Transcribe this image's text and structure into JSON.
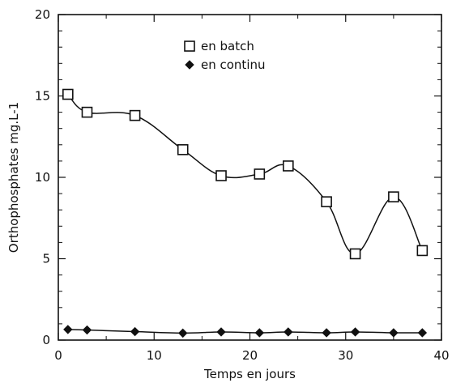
{
  "chart_data": {
    "type": "line",
    "title": "",
    "xlabel": "Temps en jours",
    "ylabel": "Orthophosphates mg.L-1",
    "xlim": [
      0,
      40
    ],
    "ylim": [
      0,
      20
    ],
    "xticks": [
      0,
      10,
      20,
      30,
      40
    ],
    "yticks": [
      0,
      5,
      10,
      15,
      20
    ],
    "grid": false,
    "legend_position": "top-center",
    "series": [
      {
        "name": "en batch",
        "marker": "open-square",
        "color": "#111111",
        "x": [
          1,
          3,
          8,
          13,
          17,
          21,
          24,
          28,
          31,
          35,
          38
        ],
        "y": [
          15.1,
          14.0,
          13.8,
          11.7,
          10.1,
          10.2,
          10.7,
          8.5,
          5.3,
          8.8,
          5.5
        ]
      },
      {
        "name": "en continu",
        "marker": "filled-diamond",
        "color": "#111111",
        "x": [
          1,
          3,
          8,
          13,
          17,
          21,
          24,
          28,
          31,
          35,
          38
        ],
        "y": [
          0.65,
          0.62,
          0.52,
          0.43,
          0.5,
          0.45,
          0.5,
          0.45,
          0.5,
          0.45,
          0.45
        ]
      }
    ]
  }
}
